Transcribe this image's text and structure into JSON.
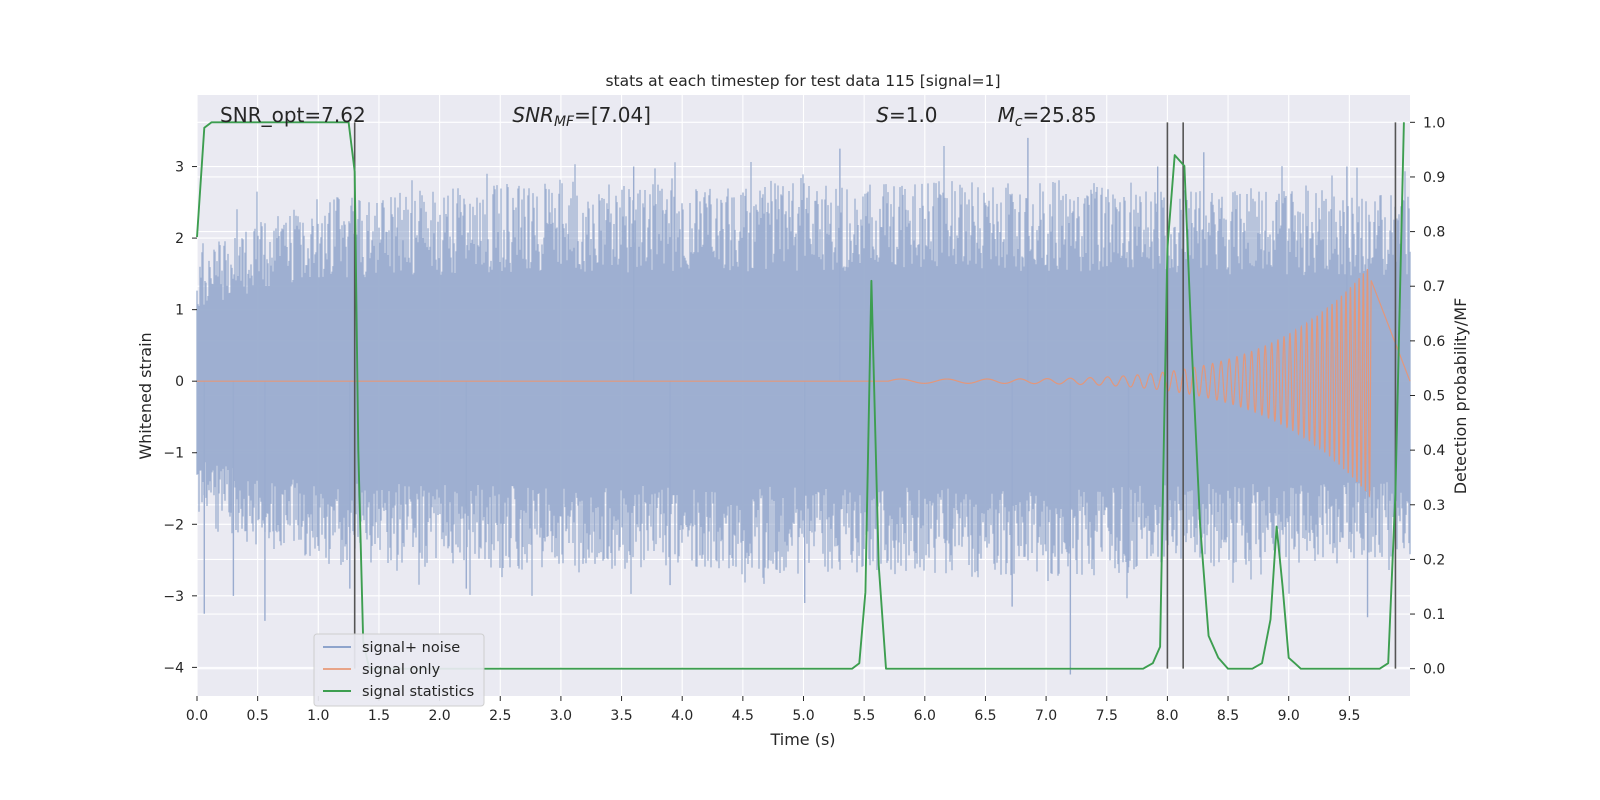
{
  "chart_data": {
    "type": "line",
    "title": "stats at each timestep for test data 115 [signal=1]",
    "xlabel": "Time (s)",
    "ylabel_left": "Whitened strain",
    "ylabel_right": "Detection probability/MF",
    "xlim": [
      0,
      10
    ],
    "ylim_left": [
      -4.4,
      4.0
    ],
    "ylim_right": [
      -0.05,
      1.05
    ],
    "x_ticks": [
      "0.0",
      "0.5",
      "1.0",
      "1.5",
      "2.0",
      "2.5",
      "3.0",
      "3.5",
      "4.0",
      "4.5",
      "5.0",
      "5.5",
      "6.0",
      "6.5",
      "7.0",
      "7.5",
      "8.0",
      "8.5",
      "9.0",
      "9.5"
    ],
    "y_ticks_left": [
      "−4",
      "−3",
      "−2",
      "−1",
      "0",
      "1",
      "2",
      "3"
    ],
    "y_ticks_right": [
      "0.0",
      "0.1",
      "0.2",
      "0.3",
      "0.4",
      "0.5",
      "0.6",
      "0.7",
      "0.8",
      "0.9",
      "1.0"
    ],
    "grid": true,
    "annotations": [
      {
        "text": "SNR_opt=7.62",
        "x": 0.19
      },
      {
        "text": "SNR_MF=[7.04]",
        "x": 2.6,
        "base": "SNR",
        "sub": "MF",
        "rest": "=[7.04]"
      },
      {
        "text": "S=1.0",
        "x": 5.6,
        "base": "S",
        "sub": "",
        "rest": "=1.0"
      },
      {
        "text": "M_c=25.85",
        "x": 6.6,
        "base": "M",
        "sub": "c",
        "rest": "=25.85"
      }
    ],
    "legend": {
      "position": "lower-left",
      "entries": [
        {
          "label": "signal+ noise",
          "color": "#8ea4cc"
        },
        {
          "label": "signal only",
          "color": "#e8a488"
        },
        {
          "label": "signal statistics",
          "color": "#3d9e50"
        }
      ]
    },
    "series": [
      {
        "name": "signal+ noise",
        "axis": "left",
        "color": "#9aaccf",
        "band_envelope": {
          "x": [
            0.0,
            1.0,
            2.0,
            3.0,
            4.0,
            5.0,
            6.0,
            7.0,
            8.0,
            9.0,
            10.0
          ],
          "upper": [
            1.9,
            2.6,
            2.7,
            2.8,
            2.7,
            2.8,
            2.8,
            2.8,
            2.7,
            2.7,
            2.6
          ],
          "lower": [
            -2.0,
            -2.6,
            -2.6,
            -2.7,
            -2.6,
            -2.7,
            -2.7,
            -2.8,
            -2.6,
            -2.6,
            -2.5
          ]
        },
        "extremes": [
          {
            "x": 0.06,
            "y": -3.25
          },
          {
            "x": 0.3,
            "y": -3.0
          },
          {
            "x": 0.56,
            "y": -3.35
          },
          {
            "x": 1.26,
            "y": -2.9
          },
          {
            "x": 2.22,
            "y": -2.9
          },
          {
            "x": 3.9,
            "y": -2.85
          },
          {
            "x": 5.01,
            "y": -3.1
          },
          {
            "x": 6.72,
            "y": -3.15
          },
          {
            "x": 7.2,
            "y": -4.1
          },
          {
            "x": 7.68,
            "y": -2.6
          },
          {
            "x": 9.65,
            "y": -3.3
          },
          {
            "x": 5.3,
            "y": 3.25
          },
          {
            "x": 6.85,
            "y": 3.4
          },
          {
            "x": 7.92,
            "y": 3.0
          },
          {
            "x": 8.3,
            "y": 3.2
          },
          {
            "x": 9.48,
            "y": 3.0
          },
          {
            "x": 3.6,
            "y": 3.0
          }
        ]
      },
      {
        "name": "signal only",
        "axis": "left",
        "color": "#e3977b",
        "chirp": {
          "start": 5.7,
          "end": 9.68,
          "peak_amplitude": 1.6,
          "freq_start": 2.5,
          "freq_end": 30
        }
      },
      {
        "name": "signal statistics",
        "axis": "right",
        "color": "#3d9e50",
        "x": [
          0.0,
          0.06,
          0.12,
          0.5,
          1.0,
          1.25,
          1.3,
          1.33,
          1.37,
          1.42,
          1.5,
          2.0,
          3.0,
          4.0,
          5.0,
          5.4,
          5.46,
          5.51,
          5.56,
          5.62,
          5.68,
          5.75,
          6.0,
          7.0,
          7.8,
          7.88,
          7.94,
          8.0,
          8.06,
          8.14,
          8.2,
          8.27,
          8.34,
          8.42,
          8.5,
          8.6,
          8.7,
          8.78,
          8.85,
          8.9,
          8.95,
          9.0,
          9.05,
          9.1,
          9.2,
          9.4,
          9.6,
          9.75,
          9.82,
          9.88,
          9.95
        ],
        "y": [
          0.79,
          0.99,
          1.0,
          1.0,
          1.0,
          1.0,
          0.91,
          0.4,
          0.05,
          0.0,
          0.0,
          0.0,
          0.0,
          0.0,
          0.0,
          0.0,
          0.01,
          0.14,
          0.71,
          0.19,
          0.0,
          0.0,
          0.0,
          0.0,
          0.0,
          0.01,
          0.04,
          0.77,
          0.94,
          0.92,
          0.59,
          0.26,
          0.06,
          0.02,
          0.0,
          0.0,
          0.0,
          0.01,
          0.09,
          0.26,
          0.15,
          0.02,
          0.01,
          0.0,
          0.0,
          0.0,
          0.0,
          0.0,
          0.01,
          0.32,
          1.0
        ]
      }
    ],
    "vertical_markers": [
      1.3,
      8.0,
      8.13,
      9.88
    ],
    "marker_color": "#555555"
  }
}
